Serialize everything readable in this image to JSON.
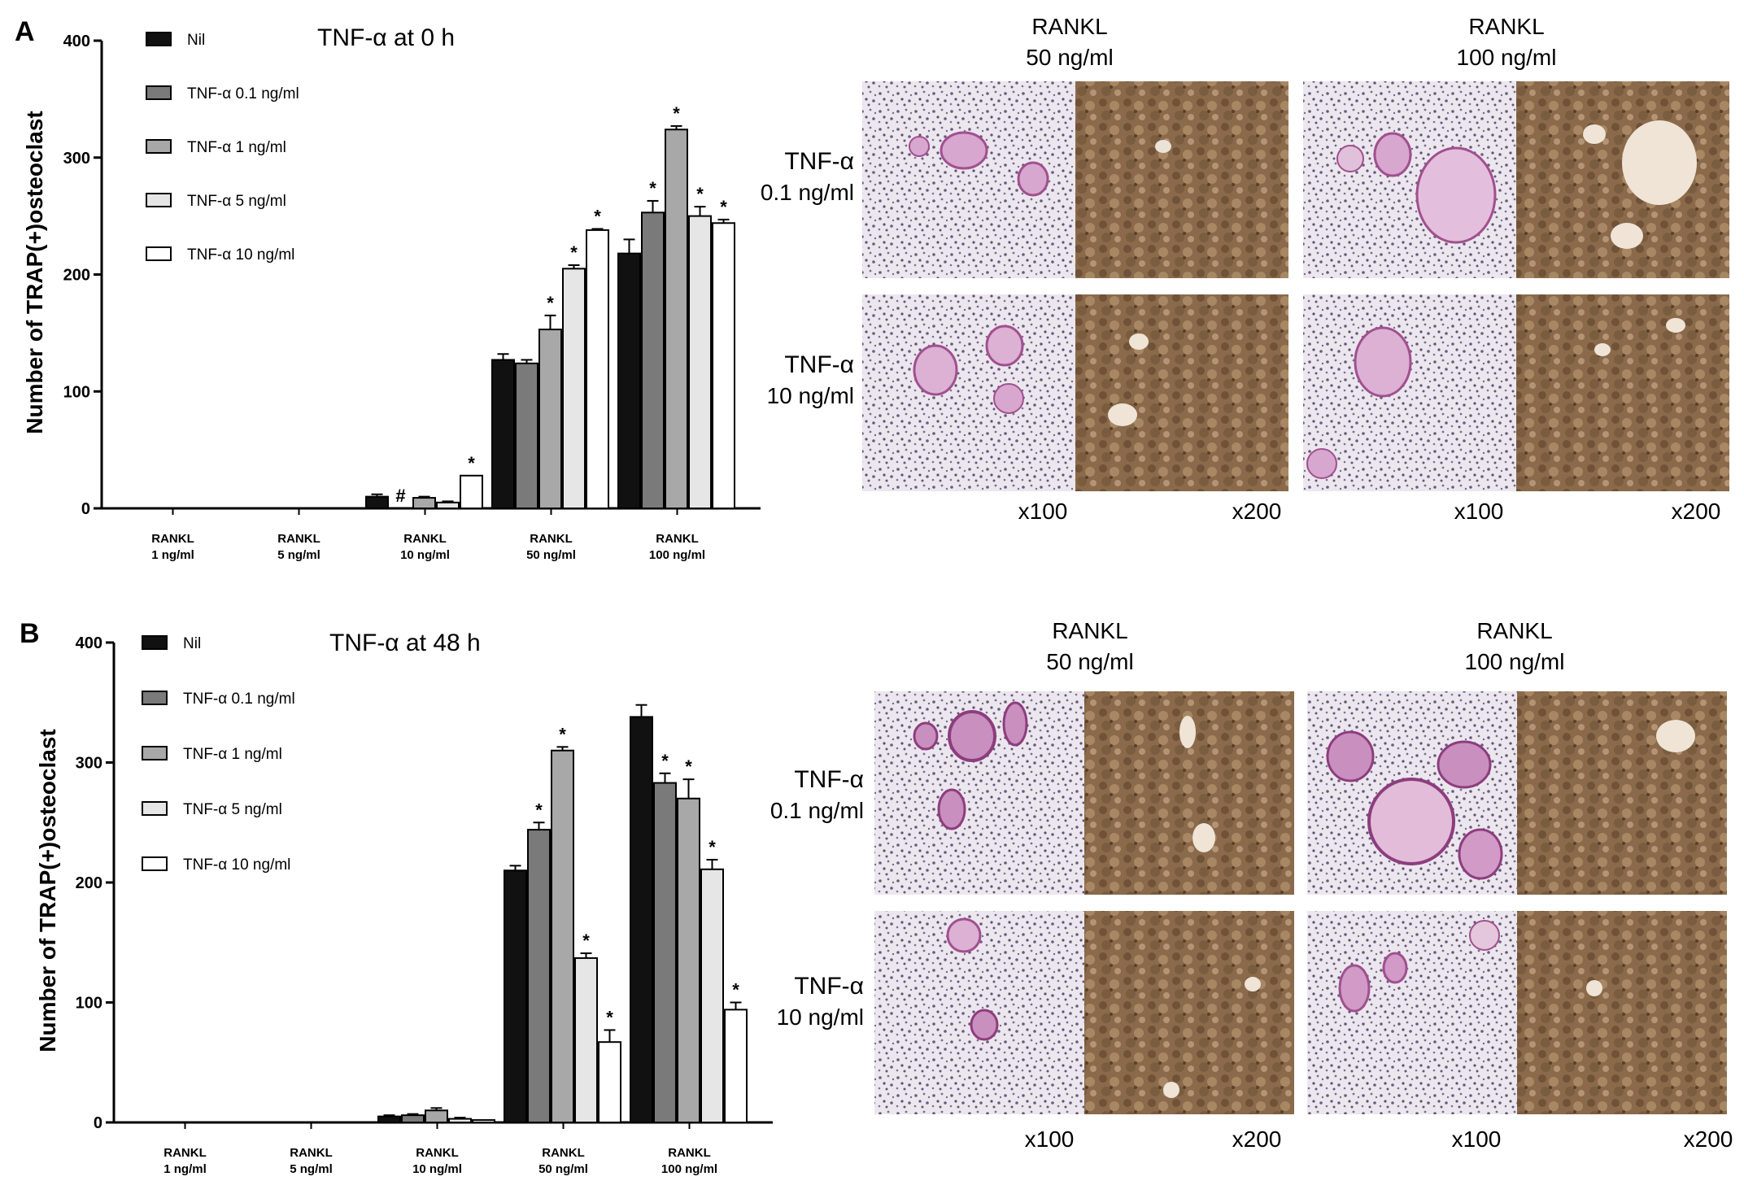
{
  "chart_data": [
    {
      "type": "bar",
      "panel": "A",
      "title": "TNF-α at 0 h",
      "ylabel": "Number of TRAP(+)osteoclast",
      "ylim": [
        0,
        400
      ],
      "yticks": [
        "0",
        "100",
        "200",
        "300",
        "400"
      ],
      "categories": [
        {
          "line1": "RANKL",
          "line2": "1 ng/ml"
        },
        {
          "line1": "RANKL",
          "line2": "5 ng/ml"
        },
        {
          "line1": "RANKL",
          "line2": "10 ng/ml"
        },
        {
          "line1": "RANKL",
          "line2": "50 ng/ml"
        },
        {
          "line1": "RANKL",
          "line2": "100 ng/ml"
        }
      ],
      "series": [
        {
          "name": "Nil",
          "color": "#111111",
          "values": [
            0,
            0,
            10,
            127,
            218
          ],
          "errors": [
            0,
            0,
            2,
            5,
            12
          ],
          "marks": [
            "",
            "",
            "",
            "",
            ""
          ]
        },
        {
          "name": "TNF-α 0.1 ng/ml",
          "color": "#7a7a7a",
          "values": [
            0,
            0,
            0,
            124,
            253
          ],
          "errors": [
            0,
            0,
            0,
            3,
            10
          ],
          "marks": [
            "",
            "",
            "#",
            "",
            "*"
          ]
        },
        {
          "name": "TNF-α 1 ng/ml",
          "color": "#a8a8a8",
          "values": [
            0,
            0,
            9,
            153,
            324
          ],
          "errors": [
            0,
            0,
            1,
            12,
            3
          ],
          "marks": [
            "",
            "",
            "",
            "*",
            "*"
          ]
        },
        {
          "name": "TNF-α 5 ng/ml",
          "color": "#e6e6e6",
          "values": [
            0,
            0,
            5,
            205,
            250
          ],
          "errors": [
            0,
            0,
            1,
            3,
            8
          ],
          "marks": [
            "",
            "",
            "",
            "*",
            "*"
          ]
        },
        {
          "name": "TNF-α 10 ng/ml",
          "color": "#ffffff",
          "values": [
            0,
            0,
            28,
            238,
            244
          ],
          "errors": [
            0,
            0,
            0,
            1,
            3
          ],
          "marks": [
            "",
            "",
            "*",
            "*",
            "*"
          ]
        }
      ]
    },
    {
      "type": "bar",
      "panel": "B",
      "title": "TNF-α at 48 h",
      "ylabel": "Number of TRAP(+)osteoclast",
      "ylim": [
        0,
        400
      ],
      "yticks": [
        "0",
        "100",
        "200",
        "300",
        "400"
      ],
      "categories": [
        {
          "line1": "RANKL",
          "line2": "1 ng/ml"
        },
        {
          "line1": "RANKL",
          "line2": "5 ng/ml"
        },
        {
          "line1": "RANKL",
          "line2": "10 ng/ml"
        },
        {
          "line1": "RANKL",
          "line2": "50 ng/ml"
        },
        {
          "line1": "RANKL",
          "line2": "100 ng/ml"
        }
      ],
      "series": [
        {
          "name": "Nil",
          "color": "#111111",
          "values": [
            0,
            0,
            5,
            210,
            338
          ],
          "errors": [
            0,
            0,
            1,
            4,
            10
          ],
          "marks": [
            "",
            "",
            "",
            "",
            ""
          ]
        },
        {
          "name": "TNF-α 0.1 ng/ml",
          "color": "#7a7a7a",
          "values": [
            0,
            0,
            6,
            244,
            283
          ],
          "errors": [
            0,
            0,
            1,
            6,
            8
          ],
          "marks": [
            "",
            "",
            "",
            "*",
            "*"
          ]
        },
        {
          "name": "TNF-α 1 ng/ml",
          "color": "#a8a8a8",
          "values": [
            0,
            0,
            10,
            310,
            270
          ],
          "errors": [
            0,
            0,
            2,
            3,
            16
          ],
          "marks": [
            "",
            "",
            "",
            "*",
            "*"
          ]
        },
        {
          "name": "TNF-α 5 ng/ml",
          "color": "#e6e6e6",
          "values": [
            0,
            0,
            3,
            137,
            211
          ],
          "errors": [
            0,
            0,
            1,
            4,
            8
          ],
          "marks": [
            "",
            "",
            "",
            "*",
            "*"
          ]
        },
        {
          "name": "TNF-α 10 ng/ml",
          "color": "#ffffff",
          "values": [
            0,
            0,
            2,
            67,
            94
          ],
          "errors": [
            0,
            0,
            0,
            10,
            6
          ],
          "marks": [
            "",
            "",
            "",
            "*",
            "*"
          ]
        }
      ]
    }
  ],
  "micrographs": [
    {
      "columns": [
        {
          "line1": "RANKL",
          "line2": "50 ng/ml"
        },
        {
          "line1": "RANKL",
          "line2": "100 ng/ml"
        }
      ],
      "rows": [
        {
          "line1": "TNF-α",
          "line2": "0.1 ng/ml"
        },
        {
          "line1": "TNF-α",
          "line2": "10 ng/ml"
        }
      ],
      "magnifications": [
        "x100",
        "x200",
        "x100",
        "x200"
      ]
    },
    {
      "columns": [
        {
          "line1": "RANKL",
          "line2": "50 ng/ml"
        },
        {
          "line1": "RANKL",
          "line2": "100 ng/ml"
        }
      ],
      "rows": [
        {
          "line1": "TNF-α",
          "line2": "0.1 ng/ml"
        },
        {
          "line1": "TNF-α",
          "line2": "10 ng/ml"
        }
      ],
      "magnifications": [
        "x100",
        "x200",
        "x100",
        "x200"
      ]
    }
  ]
}
